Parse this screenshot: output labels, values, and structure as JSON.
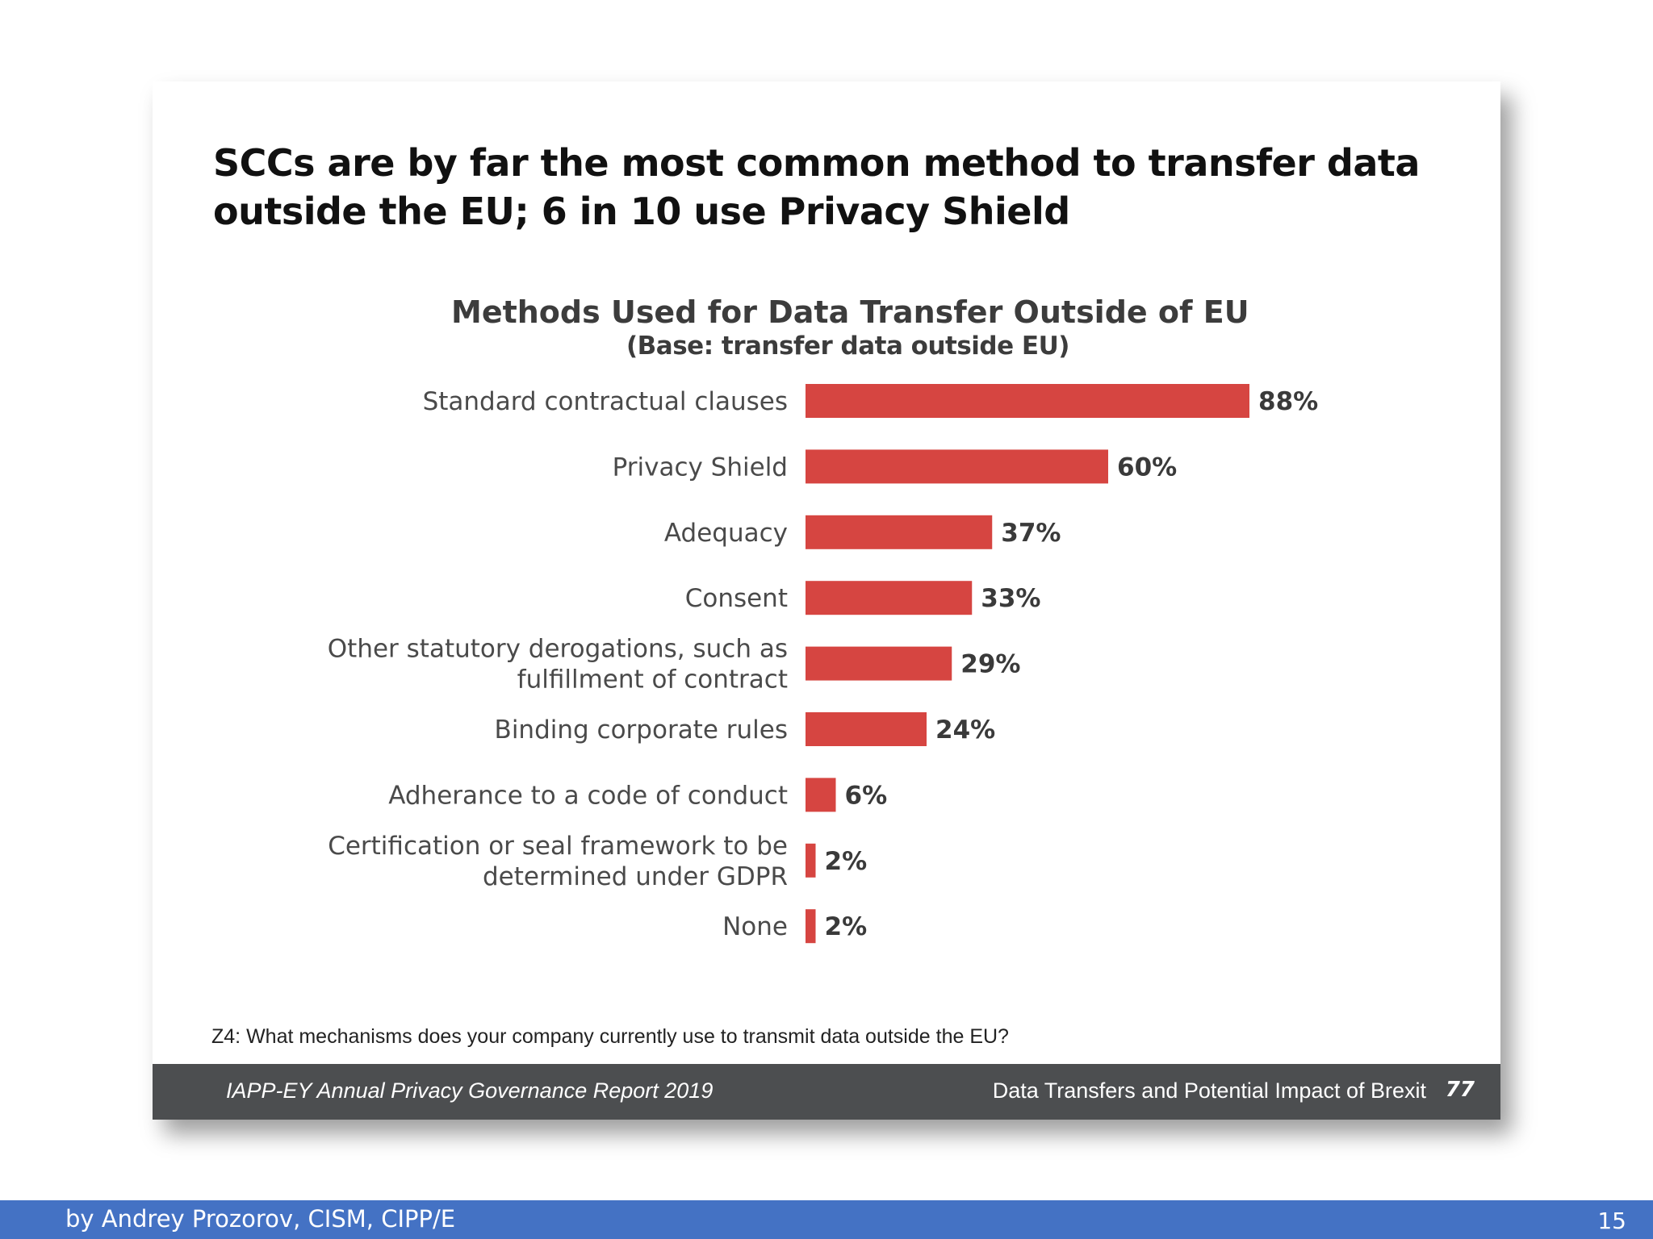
{
  "headline": {
    "line1": "SCCs are by far the most common method to transfer data",
    "line2": "outside the EU; 6 in 10 use Privacy Shield"
  },
  "chart_data": {
    "type": "bar",
    "orientation": "horizontal",
    "title": "Methods Used for Data Transfer Outside of EU",
    "subtitle": "(Base: transfer data outside EU)",
    "categories": [
      [
        "Standard contractual clauses"
      ],
      [
        "Privacy Shield"
      ],
      [
        "Adequacy"
      ],
      [
        "Consent"
      ],
      [
        "Other statutory derogations, such as",
        "fulfillment of contract"
      ],
      [
        "Binding corporate rules"
      ],
      [
        "Adherance to a code of conduct"
      ],
      [
        "Certification or seal framework to be",
        "determined under GDPR"
      ],
      [
        "None"
      ]
    ],
    "values": [
      88,
      60,
      37,
      33,
      29,
      24,
      6,
      2,
      2
    ],
    "value_labels": [
      "88%",
      "60%",
      "37%",
      "33%",
      "29%",
      "24%",
      "6%",
      "2%",
      "2%"
    ],
    "unit": "%",
    "xlim": [
      0,
      100
    ],
    "grid": false,
    "legend": "none",
    "bar_color": "#d64541"
  },
  "question": "Z4: What mechanisms does your company currently use to transmit data outside the EU?",
  "card_footer": {
    "left": "IAPP-EY Annual Privacy Governance Report 2019",
    "right": "Data Transfers and Potential Impact of Brexit",
    "page": "77"
  },
  "slide_footer": {
    "author": "by Andrey Prozorov, CISM, CIPP/E",
    "number": "15"
  },
  "colors": {
    "card_footer_bg": "#4c4e50",
    "slide_footer_bg": "#4472c4"
  }
}
